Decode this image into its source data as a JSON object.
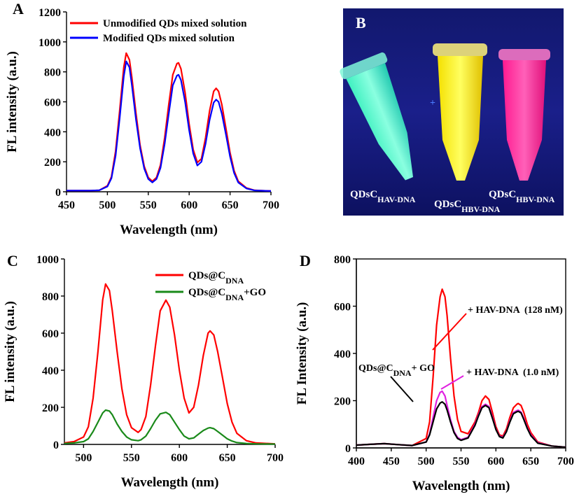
{
  "chart_data": [
    {
      "type": "line",
      "panel_label": "A",
      "xlabel": "Wavelength (nm)",
      "ylabel": "FL intensity (a.u.)",
      "xlim": [
        450,
        700
      ],
      "xticks": [
        450,
        500,
        550,
        600,
        650,
        700
      ],
      "ylim": [
        0,
        1200
      ],
      "yticks": [
        0,
        200,
        400,
        600,
        800,
        1000,
        1200
      ],
      "x": [
        450,
        480,
        490,
        500,
        505,
        510,
        515,
        520,
        523,
        527,
        530,
        535,
        540,
        545,
        550,
        555,
        560,
        565,
        570,
        575,
        580,
        585,
        587,
        590,
        595,
        600,
        605,
        610,
        615,
        620,
        625,
        630,
        633,
        636,
        640,
        645,
        650,
        655,
        660,
        670,
        680,
        700
      ],
      "series": [
        {
          "name": "Unmodified QDs mixed solution",
          "color": "#ff0000",
          "values": [
            8,
            8,
            10,
            40,
            100,
            270,
            540,
            830,
            925,
            880,
            760,
            520,
            310,
            170,
            95,
            70,
            95,
            180,
            360,
            580,
            780,
            855,
            860,
            820,
            660,
            450,
            280,
            195,
            220,
            360,
            540,
            670,
            690,
            670,
            580,
            420,
            260,
            140,
            70,
            25,
            10,
            5
          ]
        },
        {
          "name": "Modified QDs mixed solution",
          "color": "#0000ff",
          "values": [
            8,
            8,
            10,
            35,
            90,
            240,
            490,
            770,
            870,
            830,
            710,
            480,
            290,
            155,
            85,
            62,
            85,
            160,
            320,
            520,
            710,
            775,
            780,
            745,
            600,
            410,
            255,
            175,
            200,
            320,
            480,
            595,
            615,
            600,
            520,
            380,
            235,
            125,
            62,
            22,
            9,
            5
          ]
        }
      ]
    },
    {
      "type": "line",
      "panel_label": "C",
      "xlabel": "Wavelength (nm)",
      "ylabel": "FL intensity (a.u.)",
      "xlim": [
        480,
        700
      ],
      "xticks": [
        500,
        550,
        600,
        650,
        700
      ],
      "ylim": [
        0,
        1000
      ],
      "yticks": [
        0,
        200,
        400,
        600,
        800,
        1000
      ],
      "x": [
        480,
        490,
        500,
        505,
        510,
        515,
        520,
        523,
        527,
        530,
        535,
        540,
        545,
        550,
        557,
        560,
        565,
        570,
        575,
        580,
        586,
        590,
        595,
        600,
        605,
        610,
        615,
        620,
        625,
        630,
        632,
        636,
        640,
        645,
        650,
        655,
        660,
        670,
        680,
        700
      ],
      "series": [
        {
          "name": [
            "QDs@C",
            "DNA"
          ],
          "color": "#ff0000",
          "values": [
            8,
            15,
            40,
            95,
            250,
            500,
            780,
            865,
            830,
            720,
            500,
            300,
            160,
            90,
            65,
            80,
            150,
            320,
            530,
            720,
            778,
            740,
            590,
            400,
            250,
            170,
            200,
            320,
            480,
            600,
            612,
            590,
            500,
            360,
            220,
            120,
            60,
            20,
            8,
            3
          ]
        },
        {
          "name": [
            "QDs@C",
            "DNA",
            "+GO"
          ],
          "color": "#1a8a1a",
          "values": [
            5,
            8,
            15,
            30,
            70,
            120,
            170,
            185,
            180,
            160,
            110,
            70,
            40,
            25,
            20,
            25,
            45,
            85,
            130,
            165,
            173,
            160,
            120,
            80,
            45,
            30,
            35,
            55,
            75,
            88,
            90,
            85,
            70,
            50,
            30,
            18,
            10,
            5,
            3,
            2
          ]
        }
      ]
    },
    {
      "type": "line",
      "panel_label": "D",
      "xlabel": "Wavelength (nm)",
      "ylabel": "FL Intensity (a.u.)",
      "xlim": [
        400,
        700
      ],
      "xticks": [
        400,
        450,
        500,
        550,
        600,
        650,
        700
      ],
      "ylim": [
        0,
        800
      ],
      "yticks": [
        0,
        200,
        400,
        600,
        800
      ],
      "x": [
        400,
        420,
        440,
        460,
        480,
        500,
        505,
        510,
        515,
        520,
        523,
        527,
        530,
        535,
        540,
        545,
        550,
        560,
        570,
        575,
        580,
        585,
        590,
        595,
        600,
        605,
        610,
        615,
        620,
        625,
        630,
        632,
        636,
        640,
        645,
        650,
        660,
        680,
        700
      ],
      "series": [
        {
          "color": "#ff0000",
          "values": [
            12,
            15,
            18,
            14,
            10,
            40,
            110,
            300,
            520,
            640,
            672,
            640,
            560,
            380,
            220,
            120,
            70,
            60,
            110,
            150,
            200,
            220,
            205,
            150,
            90,
            55,
            50,
            80,
            130,
            170,
            185,
            188,
            180,
            150,
            100,
            65,
            25,
            8,
            3
          ]
        },
        {
          "color": "#e020e0",
          "values": [
            12,
            15,
            18,
            14,
            10,
            25,
            60,
            130,
            200,
            235,
            240,
            220,
            180,
            120,
            70,
            45,
            35,
            45,
            100,
            140,
            175,
            185,
            175,
            130,
            80,
            50,
            45,
            70,
            115,
            150,
            158,
            160,
            152,
            125,
            85,
            55,
            22,
            8,
            3
          ]
        },
        {
          "color": "#000000",
          "values": [
            12,
            15,
            18,
            14,
            10,
            25,
            55,
            110,
            165,
            190,
            195,
            185,
            160,
            110,
            65,
            40,
            32,
            42,
            95,
            135,
            170,
            180,
            170,
            125,
            78,
            48,
            42,
            68,
            110,
            145,
            153,
            155,
            148,
            120,
            82,
            52,
            20,
            8,
            3
          ]
        }
      ],
      "annotations": [
        {
          "text": [
            "+ HAV-DNA  (128 nM)"
          ],
          "color": "#ff0000"
        },
        {
          "text": [
            "+ HAV-DNA  (1.0 nM)"
          ],
          "color": "#e020e0"
        },
        {
          "text": [
            "QDs@C",
            "DNA",
            "+ GO"
          ],
          "color": "#000000"
        }
      ]
    }
  ],
  "image_panel": {
    "panel_label": "B",
    "labels": [
      [
        "QDsC",
        "HAV-DNA"
      ],
      [
        "QDsC",
        "HBV-DNA"
      ],
      [
        "QDsC",
        "HBV-DNA"
      ]
    ]
  }
}
